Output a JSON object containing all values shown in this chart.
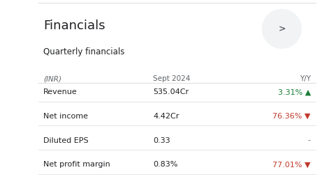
{
  "title": "Financials",
  "subtitle": "Quarterly financials",
  "header": [
    "(INR)",
    "Sept 2024",
    "Y/Y"
  ],
  "rows": [
    {
      "label": "Revenue",
      "value": "535.04Cr",
      "yy": "3.31%",
      "direction": "up"
    },
    {
      "label": "Net income",
      "value": "4.42Cr",
      "yy": "76.36%",
      "direction": "down"
    },
    {
      "label": "Diluted EPS",
      "value": "0.33",
      "yy": "-",
      "direction": "none"
    },
    {
      "label": "Net profit margin",
      "value": "0.83%",
      "yy": "77.01%",
      "direction": "down"
    }
  ],
  "bg_color": "#ffffff",
  "title_color": "#202124",
  "subtitle_color": "#202124",
  "header_color": "#5f6368",
  "label_color": "#202124",
  "value_color": "#202124",
  "green_color": "#1a7f37",
  "red_color": "#c0392b",
  "dash_color": "#5f6368",
  "divider_color": "#e0e0e0",
  "chevron_bg": "#f1f3f4",
  "chevron_color": "#5f6368"
}
